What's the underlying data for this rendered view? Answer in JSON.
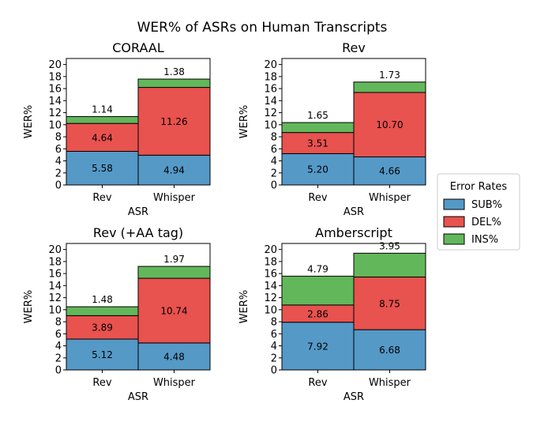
{
  "suptitle": "WER% of ASRs on Human Transcripts",
  "legend": {
    "title": "Error Rates",
    "placement": "right",
    "items": [
      {
        "label": "SUB%",
        "color": "#5599c7"
      },
      {
        "label": "DEL%",
        "color": "#e8524f"
      },
      {
        "label": "INS%",
        "color": "#63b75b"
      }
    ]
  },
  "chart_data": [
    {
      "type": "bar",
      "stacked": true,
      "title": "CORAAL",
      "xlabel": "ASR",
      "ylabel": "WER%",
      "ylim": [
        0,
        21
      ],
      "yticks": [
        0,
        2,
        4,
        6,
        8,
        10,
        12,
        14,
        16,
        18,
        20
      ],
      "categories": [
        "Rev",
        "Whisper"
      ],
      "series": [
        {
          "name": "SUB%",
          "values": [
            5.58,
            4.94
          ],
          "labels": [
            "5.58",
            "4.94"
          ]
        },
        {
          "name": "DEL%",
          "values": [
            4.64,
            11.26
          ],
          "labels": [
            "4.64",
            "11.26"
          ]
        },
        {
          "name": "INS%",
          "values": [
            1.14,
            1.38
          ],
          "labels": [
            "1.14",
            "1.38"
          ]
        }
      ]
    },
    {
      "type": "bar",
      "stacked": true,
      "title": "Rev",
      "xlabel": "ASR",
      "ylabel": "WER%",
      "ylim": [
        0,
        21
      ],
      "yticks": [
        0,
        2,
        4,
        6,
        8,
        10,
        12,
        14,
        16,
        18,
        20
      ],
      "categories": [
        "Rev",
        "Whisper"
      ],
      "series": [
        {
          "name": "SUB%",
          "values": [
            5.2,
            4.66
          ],
          "labels": [
            "5.20",
            "4.66"
          ]
        },
        {
          "name": "DEL%",
          "values": [
            3.51,
            10.7
          ],
          "labels": [
            "3.51",
            "10.70"
          ]
        },
        {
          "name": "INS%",
          "values": [
            1.65,
            1.73
          ],
          "labels": [
            "1.65",
            "1.73"
          ]
        }
      ]
    },
    {
      "type": "bar",
      "stacked": true,
      "title": "Rev (+AA tag)",
      "xlabel": "ASR",
      "ylabel": "WER%",
      "ylim": [
        0,
        21
      ],
      "yticks": [
        0,
        2,
        4,
        6,
        8,
        10,
        12,
        14,
        16,
        18,
        20
      ],
      "categories": [
        "Rev",
        "Whisper"
      ],
      "series": [
        {
          "name": "SUB%",
          "values": [
            5.12,
            4.48
          ],
          "labels": [
            "5.12",
            "4.48"
          ]
        },
        {
          "name": "DEL%",
          "values": [
            3.89,
            10.74
          ],
          "labels": [
            "3.89",
            "10.74"
          ]
        },
        {
          "name": "INS%",
          "values": [
            1.48,
            1.97
          ],
          "labels": [
            "1.48",
            "1.97"
          ]
        }
      ]
    },
    {
      "type": "bar",
      "stacked": true,
      "title": "Amberscript",
      "xlabel": "ASR",
      "ylabel": "WER%",
      "ylim": [
        0,
        21
      ],
      "yticks": [
        0,
        2,
        4,
        6,
        8,
        10,
        12,
        14,
        16,
        18,
        20
      ],
      "categories": [
        "Rev",
        "Whisper"
      ],
      "series": [
        {
          "name": "SUB%",
          "values": [
            7.92,
            6.68
          ],
          "labels": [
            "7.92",
            "6.68"
          ]
        },
        {
          "name": "DEL%",
          "values": [
            2.86,
            8.75
          ],
          "labels": [
            "2.86",
            "8.75"
          ]
        },
        {
          "name": "INS%",
          "values": [
            4.79,
            3.95
          ],
          "labels": [
            "4.79",
            "3.95"
          ]
        }
      ]
    }
  ]
}
